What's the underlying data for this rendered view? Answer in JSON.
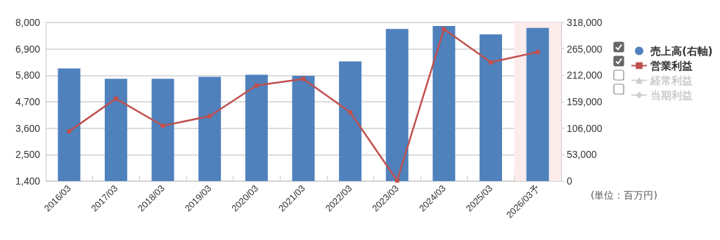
{
  "chart_data": {
    "type": "bar",
    "categories": [
      "2016/03",
      "2017/03",
      "2018/03",
      "2019/03",
      "2020/03",
      "2021/03",
      "2022/03",
      "2023/03",
      "2024/03",
      "2025/03",
      "2026/03予"
    ],
    "series": [
      {
        "name": "売上高(右軸)",
        "axis": "y2",
        "color": "#4f81bd",
        "values": [
          226000,
          205000,
          205000,
          209000,
          213000,
          211000,
          240000,
          305000,
          311000,
          294000,
          307000
        ]
      },
      {
        "name": "営業利益",
        "type": "line",
        "axis": "y",
        "color": "#c0504d",
        "marker": "square",
        "values": [
          3470,
          4830,
          3700,
          4100,
          5380,
          5650,
          4260,
          1420,
          7720,
          6340,
          6770
        ]
      },
      {
        "name": "経常利益",
        "type": "line",
        "axis": "y",
        "color": "#cccccc",
        "marker": "triangle",
        "values": [
          null,
          null,
          null,
          null,
          null,
          null,
          null,
          null,
          null,
          null,
          null
        ]
      },
      {
        "name": "当期利益",
        "type": "line",
        "axis": "y",
        "color": "#cccccc",
        "marker": "diamond",
        "values": [
          null,
          null,
          null,
          null,
          null,
          null,
          null,
          null,
          null,
          null,
          null
        ]
      }
    ],
    "ylim": [
      1400,
      8000
    ],
    "yticks": [
      {
        "value": 1400,
        "label": "1,400"
      },
      {
        "value": 2500,
        "label": "2,500"
      },
      {
        "value": 3600,
        "label": "3,600"
      },
      {
        "value": 4700,
        "label": "4,700"
      },
      {
        "value": 5800,
        "label": "5,800"
      },
      {
        "value": 6900,
        "label": "6,900"
      },
      {
        "value": 8000,
        "label": "8,000"
      }
    ],
    "y2lim": [
      0,
      318000
    ],
    "y2ticks": [
      0,
      {
        "value": 53000,
        "label": "53,000"
      },
      {
        "value": 106000,
        "label": "106,000"
      },
      {
        "value": 159000,
        "label": "159,000"
      },
      {
        "value": 212000,
        "label": "212,000"
      },
      {
        "value": 265000,
        "label": "265,000"
      },
      {
        "value": 318000,
        "label": "318,000"
      }
    ],
    "bands": [
      {
        "axis": "x",
        "from": "2026/03予",
        "to": "2026/03予",
        "color": "#fdecec"
      }
    ],
    "annotations": [
      "(単位：百万円)"
    ],
    "grid": "y",
    "legend": "right"
  }
}
